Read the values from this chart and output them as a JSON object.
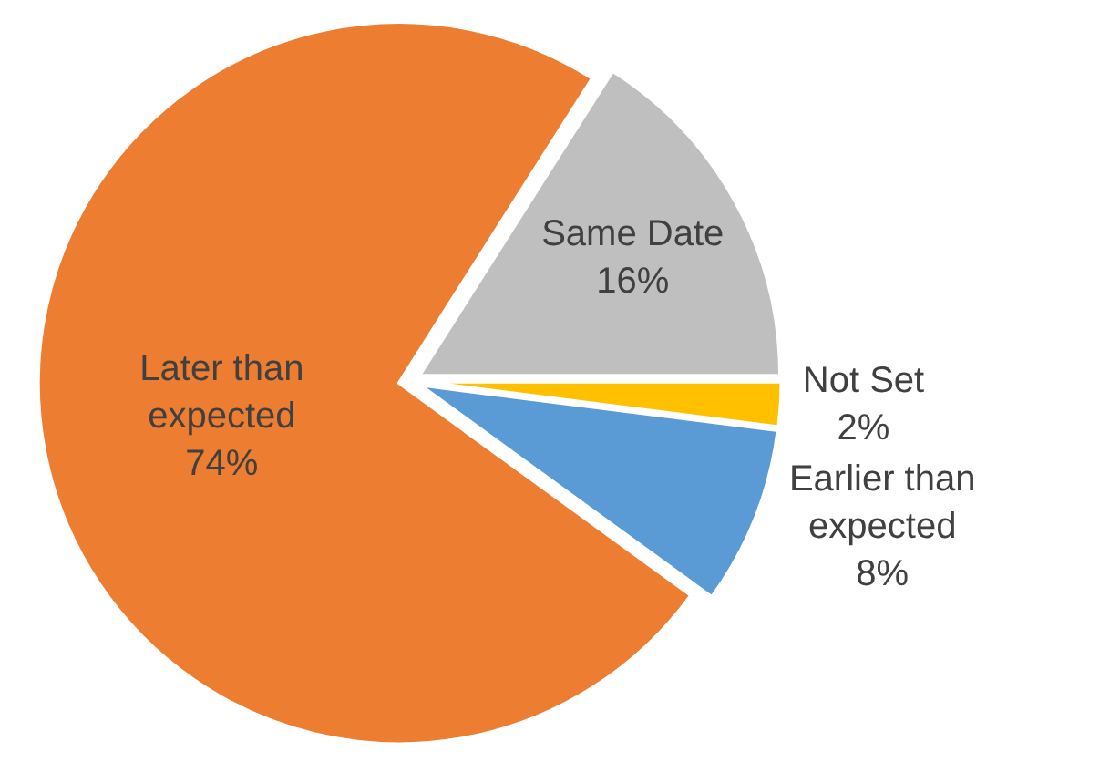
{
  "chart_data": {
    "type": "pie",
    "categories": [
      "Same Date",
      "Not Set",
      "Earlier than expected",
      "Later than expected"
    ],
    "values": [
      16,
      2,
      8,
      74
    ],
    "value_labels": [
      "16%",
      "2%",
      "8%",
      "74%"
    ],
    "colors": [
      "#bfbfbf",
      "#ffc000",
      "#5b9bd5",
      "#ed7d31"
    ],
    "legend": false
  }
}
